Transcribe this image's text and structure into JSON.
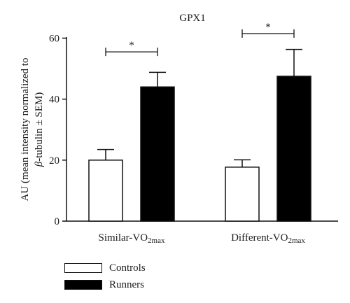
{
  "chart_data": {
    "type": "bar",
    "title": "GPX1",
    "ylabel_line1": "AU (mean intensity normalized to",
    "ylabel_line2_prefix": "β",
    "ylabel_line2_rest": "-tubulin ± SEM)",
    "ylim": [
      0,
      60
    ],
    "yticks": [
      0,
      20,
      40,
      60
    ],
    "categories": [
      {
        "prefix": "Similar-VO",
        "sub": "2max"
      },
      {
        "prefix": "Different-VO",
        "sub": "2max"
      }
    ],
    "series": [
      {
        "name": "Controls",
        "color": "#ffffff",
        "values": [
          20.0,
          17.7
        ],
        "errors": [
          3.5,
          2.4
        ]
      },
      {
        "name": "Runners",
        "color": "#000000",
        "values": [
          44.0,
          47.5
        ],
        "errors": [
          4.8,
          8.8
        ]
      }
    ],
    "significance": [
      {
        "category": 0,
        "label": "*",
        "y": 55.5
      },
      {
        "category": 1,
        "label": "*",
        "y": 61.5
      }
    ]
  }
}
